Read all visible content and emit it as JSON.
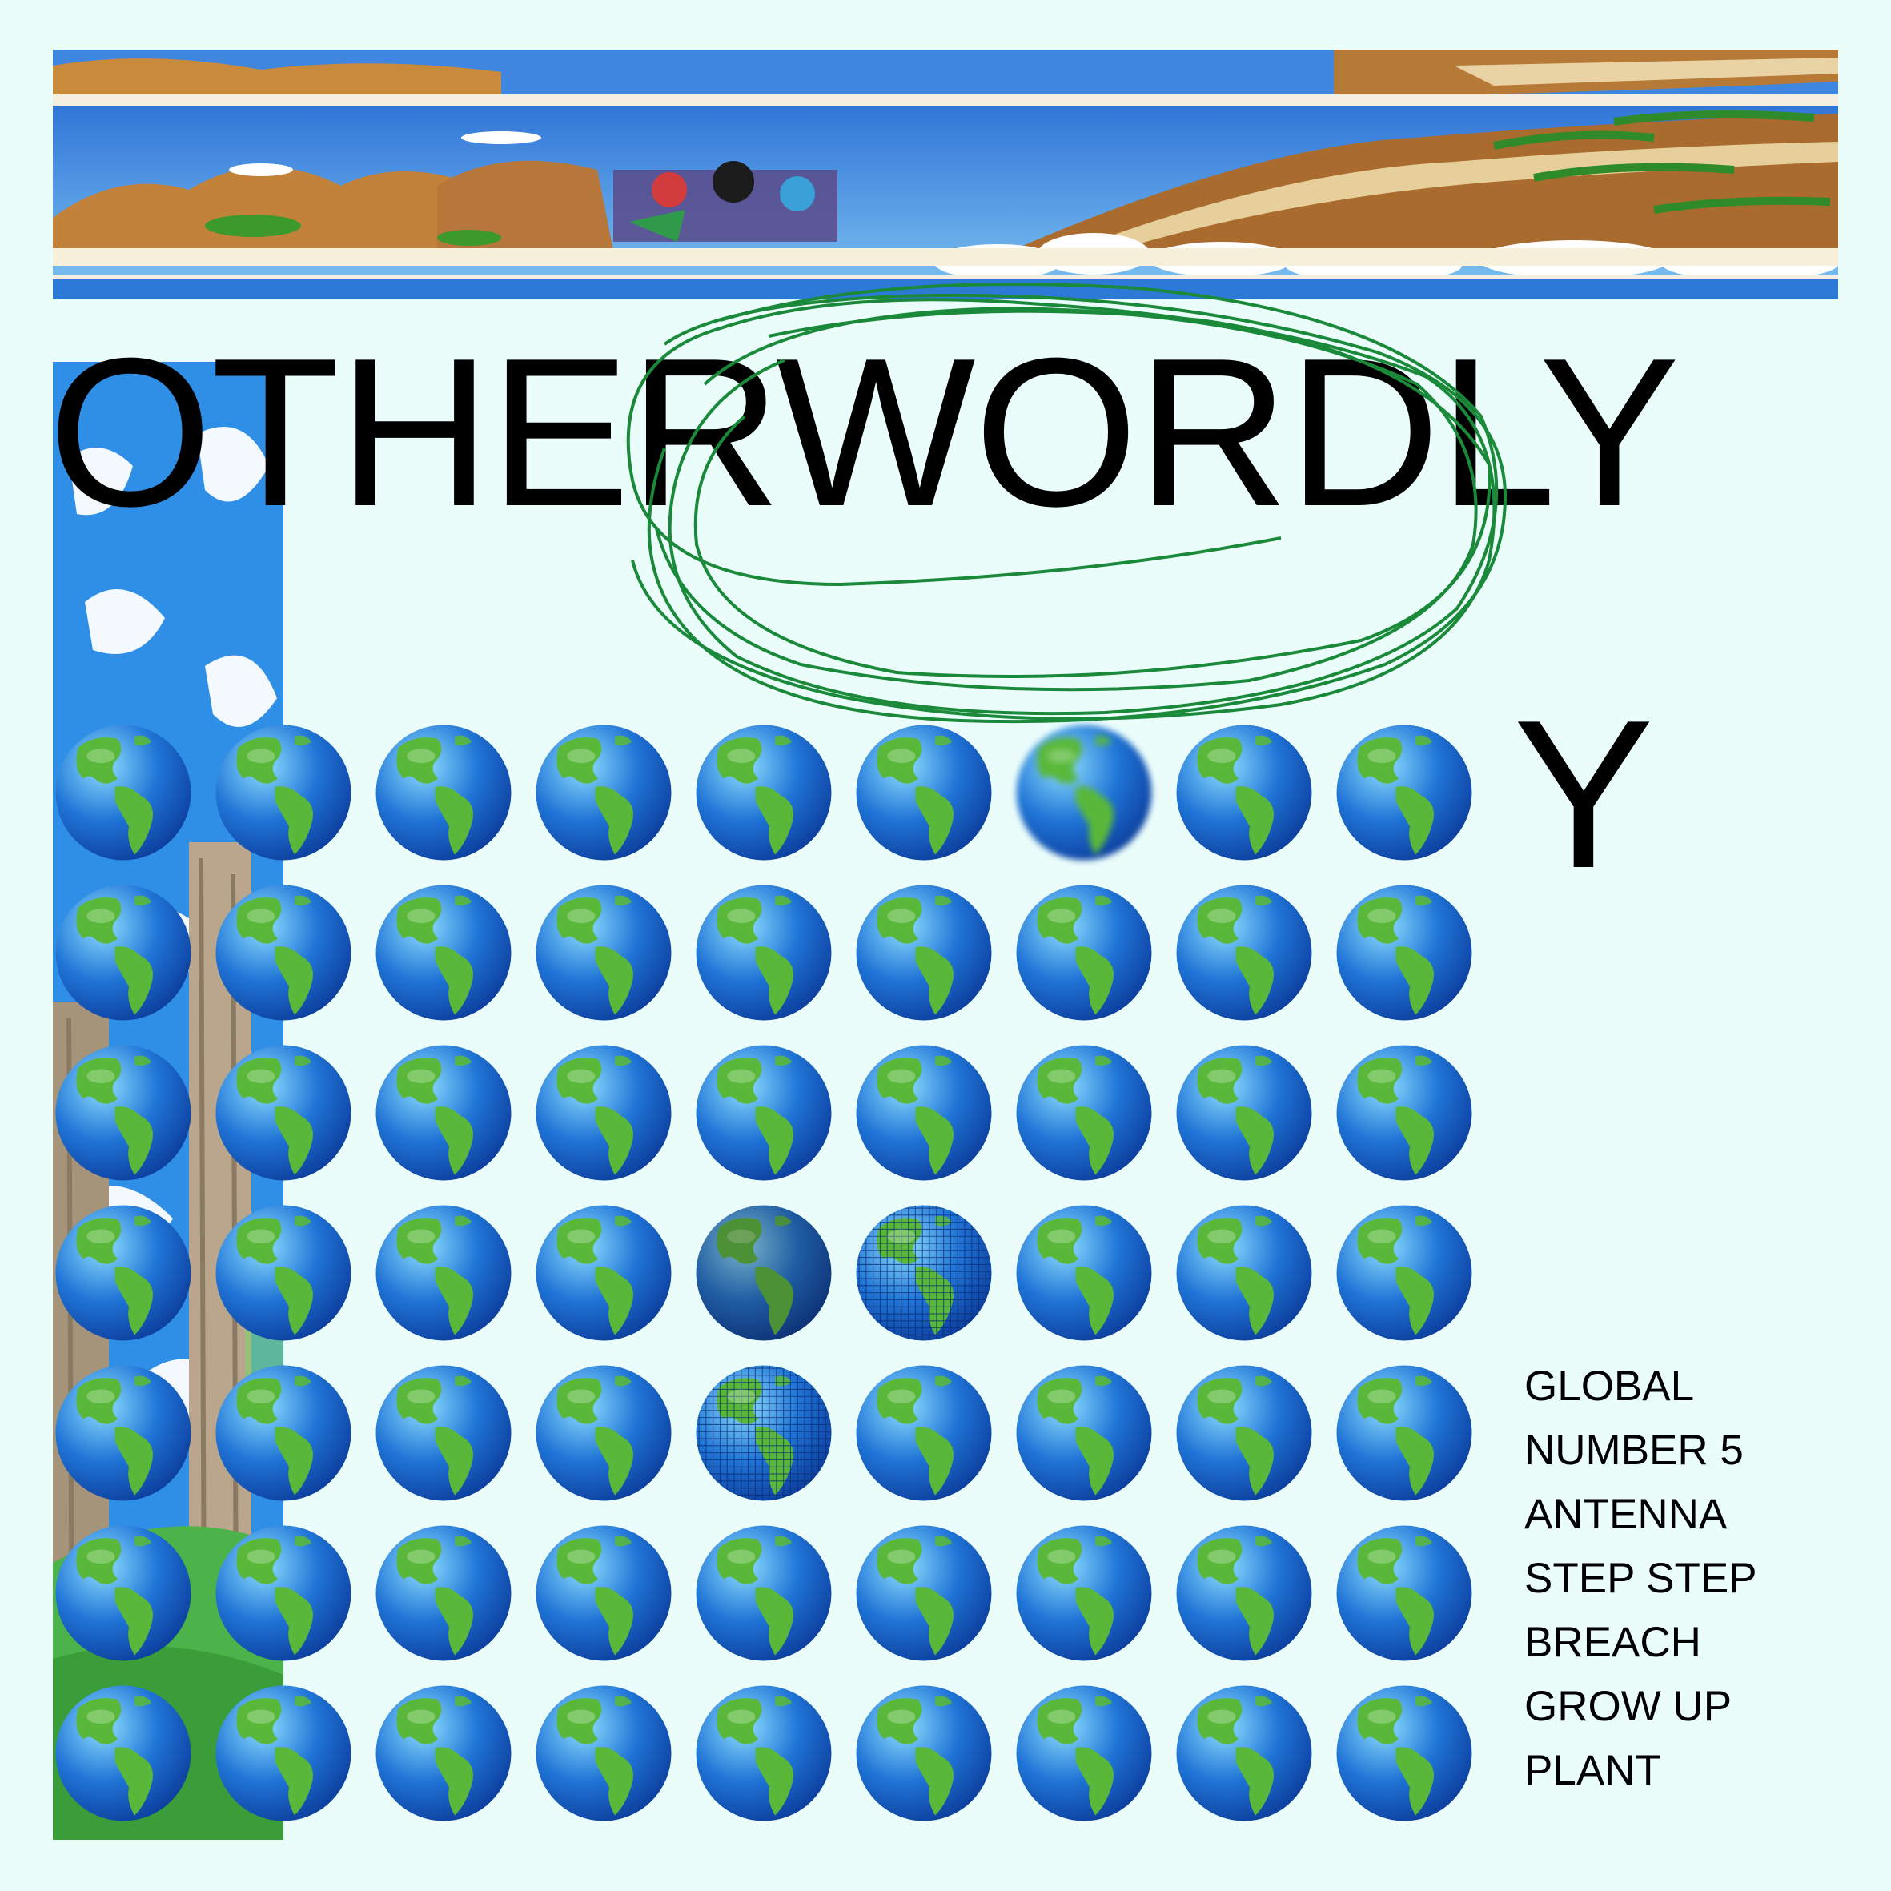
{
  "title": "OTHERWORDLY",
  "lone_letter": "Y",
  "globe_icon": "earth-globe-americas-icon",
  "globe_grid": {
    "rows": 7,
    "columns": 9,
    "variants": [
      [
        "normal",
        "normal",
        "normal",
        "normal",
        "normal",
        "normal",
        "blurred",
        "normal",
        "normal"
      ],
      [
        "normal",
        "normal",
        "normal",
        "normal",
        "normal",
        "normal",
        "normal",
        "normal",
        "normal"
      ],
      [
        "normal",
        "normal",
        "normal",
        "normal",
        "normal",
        "normal",
        "normal",
        "normal",
        "normal"
      ],
      [
        "normal",
        "normal",
        "normal",
        "normal",
        "dim",
        "pixelated",
        "normal",
        "normal",
        "normal"
      ],
      [
        "normal",
        "normal",
        "normal",
        "normal",
        "pixelated",
        "normal",
        "normal",
        "normal",
        "normal"
      ],
      [
        "normal",
        "normal",
        "normal",
        "normal",
        "normal",
        "normal",
        "normal",
        "normal",
        "normal"
      ],
      [
        "normal",
        "normal",
        "normal",
        "normal",
        "normal",
        "normal",
        "normal",
        "normal",
        "normal"
      ]
    ]
  },
  "word_list": [
    "GLOBAL",
    "NUMBER 5",
    "ANTENNA",
    "STEP STEP",
    "BREACH",
    "GROW UP",
    "PLANT"
  ],
  "colors": {
    "background": "#eafdfb",
    "text": "#000000",
    "scribble": "#1a8a3a",
    "ocean": "#1f74d6",
    "land": "#59b83a"
  }
}
